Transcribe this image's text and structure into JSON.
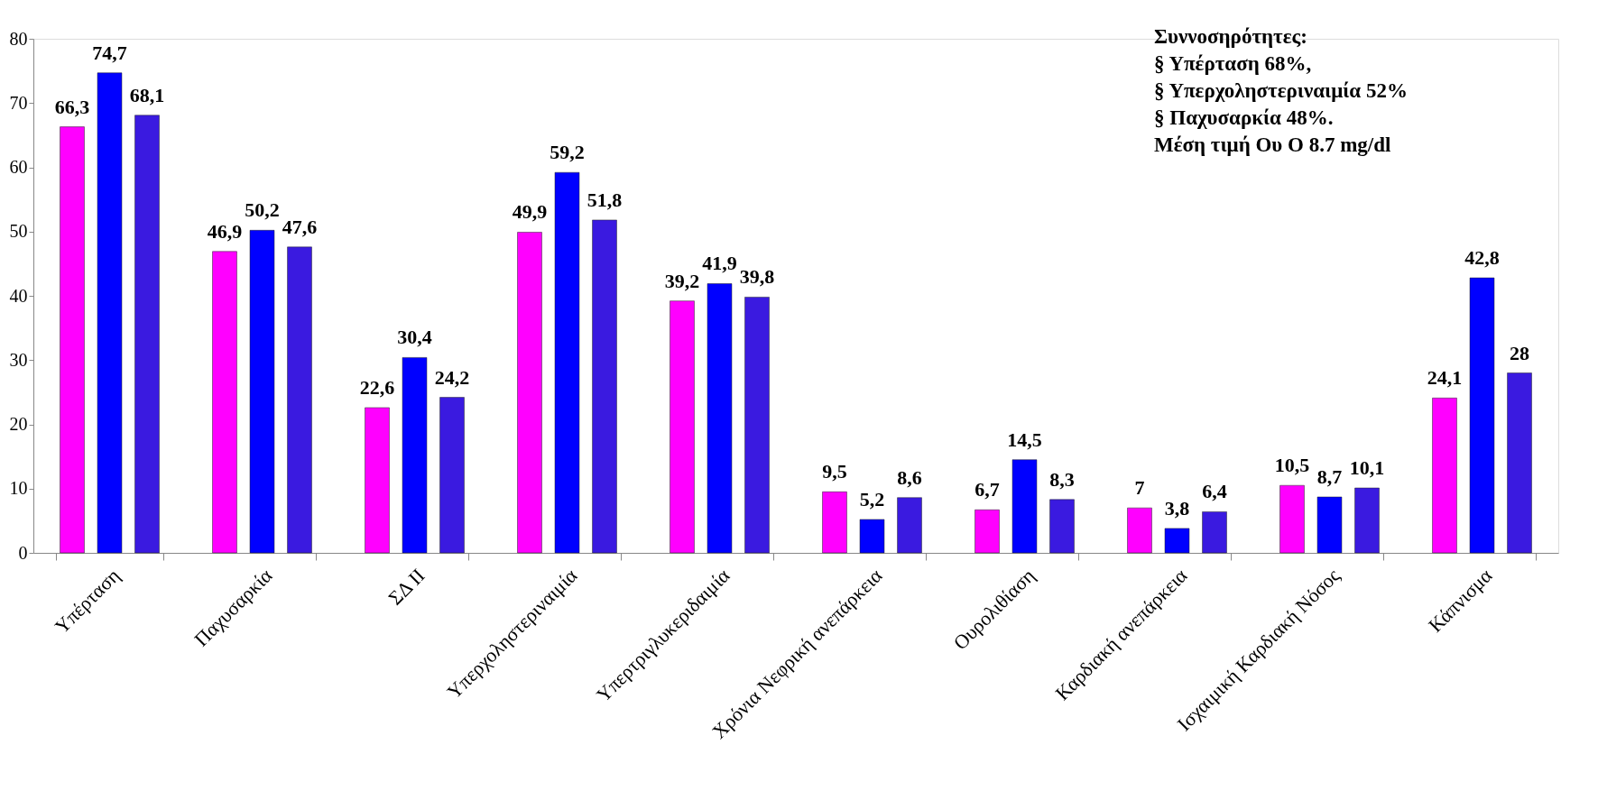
{
  "chart_data": {
    "type": "bar",
    "categories": [
      "Υπέρταση",
      "Παχυσαρκία",
      "ΣΔ ΙΙ",
      "Υπερχοληστεριναιμία",
      "Υπερτριγλυκεριδαιμία",
      "Χρόνια Νεφρική ανεπάρκεια",
      "Ουρολιθίαση",
      "Καρδιακή ανεπάρκεια",
      "Ισχαιμική Καρδιακή Νόσος",
      "Κάπνισμα"
    ],
    "series": [
      {
        "color": "#ff00ff",
        "values": [
          66.3,
          46.9,
          22.6,
          49.9,
          39.2,
          9.5,
          6.7,
          7,
          10.5,
          24.1
        ],
        "value_labels": [
          "66,3",
          "46,9",
          "22,6",
          "49,9",
          "39,2",
          "9,5",
          "6,7",
          "7",
          "10,5",
          "24,1"
        ]
      },
      {
        "color": "#0000ff",
        "values": [
          74.7,
          50.2,
          30.4,
          59.2,
          41.9,
          5.2,
          14.5,
          3.8,
          8.7,
          42.8
        ],
        "value_labels": [
          "74,7",
          "50,2",
          "30,4",
          "59,2",
          "41,9",
          "5,2",
          "14,5",
          "3,8",
          "8,7",
          "42,8"
        ]
      },
      {
        "color": "#3a1ae0",
        "values": [
          68.1,
          47.6,
          24.2,
          51.8,
          39.8,
          8.6,
          8.3,
          6.4,
          10.1,
          28
        ],
        "value_labels": [
          "68,1",
          "47,6",
          "24,2",
          "51,8",
          "39,8",
          "8,6",
          "8,3",
          "6,4",
          "10,1",
          "28"
        ]
      }
    ],
    "ylim": [
      0,
      80
    ],
    "yticks": [
      0,
      10,
      20,
      30,
      40,
      50,
      60,
      70,
      80
    ],
    "grid": false,
    "legend": false,
    "annotations": [
      "Συννοσηρότητες:",
      "§  Υπέρταση 68%,",
      "§  Υπερχοληστεριναιμία 52%",
      "§  Παχυσαρκία 48%.",
      "Μέση τιμή Ου Ο  8.7 mg/dl"
    ]
  }
}
